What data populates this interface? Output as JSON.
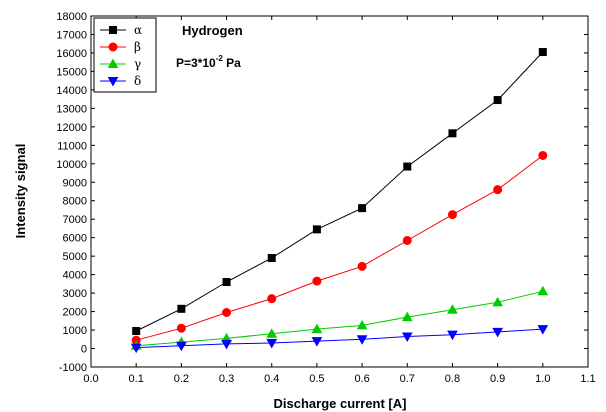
{
  "chart_data": {
    "type": "line",
    "xlabel": "Discharge current [A]",
    "ylabel": "Intensity signal",
    "xlim": [
      0.0,
      1.1
    ],
    "ylim": [
      -1000,
      18000
    ],
    "x_ticks": [
      "0.0",
      "0.1",
      "0.2",
      "0.3",
      "0.4",
      "0.5",
      "0.6",
      "0.7",
      "0.8",
      "0.9",
      "1.0",
      "1.1"
    ],
    "y_ticks": [
      "-1000",
      "0",
      "1000",
      "2000",
      "3000",
      "4000",
      "5000",
      "6000",
      "7000",
      "8000",
      "9000",
      "10000",
      "11000",
      "12000",
      "13000",
      "14000",
      "15000",
      "16000",
      "17000",
      "18000"
    ],
    "grid": false,
    "legend_position": "top-left",
    "annotations": {
      "title": "Hydrogen",
      "pressure_prefix": "P=3*10",
      "pressure_exp": "-2",
      "pressure_unit": " Pa"
    },
    "x": [
      0.1,
      0.2,
      0.3,
      0.4,
      0.5,
      0.6,
      0.7,
      0.8,
      0.9,
      1.0
    ],
    "series": [
      {
        "name": "α",
        "color": "#000000",
        "marker": "square",
        "values": [
          950,
          2150,
          3600,
          4900,
          6450,
          7600,
          9850,
          11650,
          13450,
          16050
        ]
      },
      {
        "name": "β",
        "color": "#ff0000",
        "marker": "circle",
        "values": [
          450,
          1100,
          1950,
          2700,
          3650,
          4450,
          5850,
          7250,
          8600,
          10450
        ]
      },
      {
        "name": "γ",
        "color": "#00cc00",
        "marker": "triangle-up",
        "values": [
          150,
          350,
          550,
          800,
          1050,
          1250,
          1700,
          2100,
          2500,
          3100
        ]
      },
      {
        "name": "δ",
        "color": "#0000ff",
        "marker": "triangle-down",
        "values": [
          50,
          150,
          250,
          300,
          400,
          500,
          650,
          750,
          900,
          1050
        ]
      }
    ]
  }
}
